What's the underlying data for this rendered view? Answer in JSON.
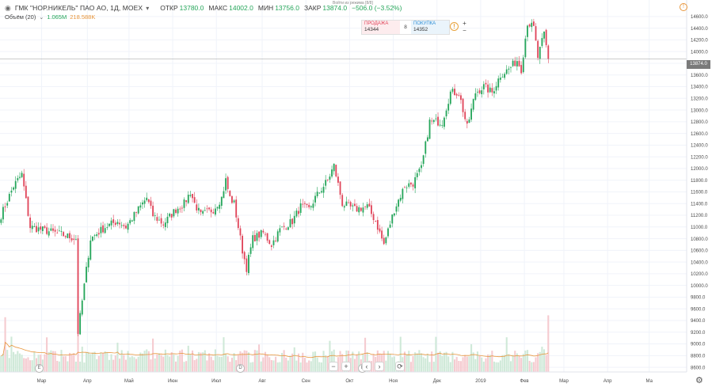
{
  "header": {
    "symbol": "ГМК \"НОР.НИКЕЛЬ\" ПАО АО, 1Д, MOEX",
    "open_label": "ОТКР",
    "open": "13780.0",
    "high_label": "МАКС",
    "high": "14002.0",
    "low_label": "МИН",
    "low": "13756.0",
    "close_label": "ЗАКР",
    "close": "13874.0",
    "change": "−506.0 (−3.52%)"
  },
  "hint": "Войти из режима [8/8]",
  "volume_legend": {
    "label": "Объём (20)",
    "value": "1.065M",
    "ma_value": "218.588K"
  },
  "trade_widget": {
    "sell_label": "ПРОДАЖА",
    "sell_price": "14344",
    "quantity": "8",
    "buy_label": "ПОКУПКА",
    "buy_price": "14352",
    "info_icon": "info-icon",
    "plus": "+",
    "minus": "−"
  },
  "price_label": "13874.0",
  "toolbar": {
    "zoom_out": "−",
    "zoom_in": "+",
    "prev": "‹",
    "next": "›",
    "reset": "⟳"
  },
  "colors": {
    "up": "#26a65b",
    "down": "#e0455a",
    "volume_up": "#cfe9d8",
    "volume_down": "#f5cbd0",
    "volume_ma": "#e8963c",
    "grid": "#f0f3fa"
  },
  "chart_data": {
    "type": "candlestick",
    "price_axis": {
      "ylim": [
        8520,
        14720
      ],
      "ticks": [
        8600,
        8800,
        9000,
        9200,
        9400,
        9600,
        9800,
        10000,
        10200,
        10400,
        10600,
        10800,
        11000,
        11200,
        11400,
        11600,
        11800,
        12000,
        12200,
        12400,
        12600,
        12800,
        13000,
        13200,
        13400,
        13600,
        13800,
        14000,
        14200,
        14400,
        14600
      ],
      "tick_labels": [
        "8600.0",
        "8800.0",
        "9000.0",
        "9200.0",
        "9400.0",
        "9600.0",
        "9800.0",
        "10000.0",
        "10200.0",
        "10400.0",
        "10600.0",
        "10800.0",
        "11000.0",
        "11200.0",
        "11400.0",
        "11600.0",
        "11800.0",
        "12000.0",
        "12200.0",
        "12400.0",
        "12600.0",
        "12800.0",
        "13000.0",
        "13200.0",
        "13400.0",
        "13600.0",
        "13800.0",
        "14000.0",
        "14200.0",
        "14400.0",
        "14600.0"
      ],
      "last_price": 13874.0
    },
    "time_axis": {
      "labels": [
        "Мар",
        "Апр",
        "Май",
        "Июн",
        "Июл",
        "Авг",
        "Сен",
        "Окт",
        "Ноя",
        "Дек",
        "2019",
        "Фев",
        "Мар",
        "Апр",
        "Ма"
      ],
      "label_index": [
        20,
        42,
        62,
        83,
        104,
        126,
        147,
        168,
        189,
        210,
        231,
        252,
        271,
        292,
        312
      ]
    },
    "ohlc_control_points": [
      [
        0,
        11200
      ],
      [
        6,
        11700
      ],
      [
        10,
        11900
      ],
      [
        14,
        11000
      ],
      [
        26,
        10900
      ],
      [
        36,
        10800
      ],
      [
        37,
        9200
      ],
      [
        40,
        10000
      ],
      [
        43,
        10800
      ],
      [
        50,
        11000
      ],
      [
        56,
        11100
      ],
      [
        60,
        11000
      ],
      [
        66,
        11300
      ],
      [
        70,
        11500
      ],
      [
        73,
        11200
      ],
      [
        78,
        11050
      ],
      [
        84,
        11300
      ],
      [
        88,
        11400
      ],
      [
        91,
        11600
      ],
      [
        93,
        11400
      ],
      [
        96,
        11200
      ],
      [
        102,
        11300
      ],
      [
        106,
        11500
      ],
      [
        108,
        11800
      ],
      [
        110,
        11500
      ],
      [
        112,
        11400
      ],
      [
        116,
        10600
      ],
      [
        118,
        10300
      ],
      [
        121,
        10800
      ],
      [
        126,
        10900
      ],
      [
        130,
        10700
      ],
      [
        134,
        10950
      ],
      [
        140,
        11100
      ],
      [
        144,
        11350
      ],
      [
        148,
        11300
      ],
      [
        151,
        11500
      ],
      [
        157,
        11800
      ],
      [
        160,
        12050
      ],
      [
        164,
        11400
      ],
      [
        170,
        11300
      ],
      [
        176,
        11350
      ],
      [
        180,
        11100
      ],
      [
        184,
        10700
      ],
      [
        189,
        11300
      ],
      [
        194,
        11700
      ],
      [
        198,
        11750
      ],
      [
        202,
        12000
      ],
      [
        206,
        12800
      ],
      [
        212,
        12800
      ],
      [
        216,
        13300
      ],
      [
        220,
        13300
      ],
      [
        224,
        12700
      ],
      [
        228,
        13300
      ],
      [
        232,
        13400
      ],
      [
        236,
        13300
      ],
      [
        240,
        13600
      ],
      [
        244,
        13700
      ],
      [
        248,
        13850
      ],
      [
        250,
        13700
      ],
      [
        253,
        14500
      ],
      [
        256,
        14400
      ],
      [
        258,
        13900
      ],
      [
        261,
        14300
      ],
      [
        263,
        13874
      ]
    ],
    "volume_axis": {
      "max": 2.2
    }
  }
}
